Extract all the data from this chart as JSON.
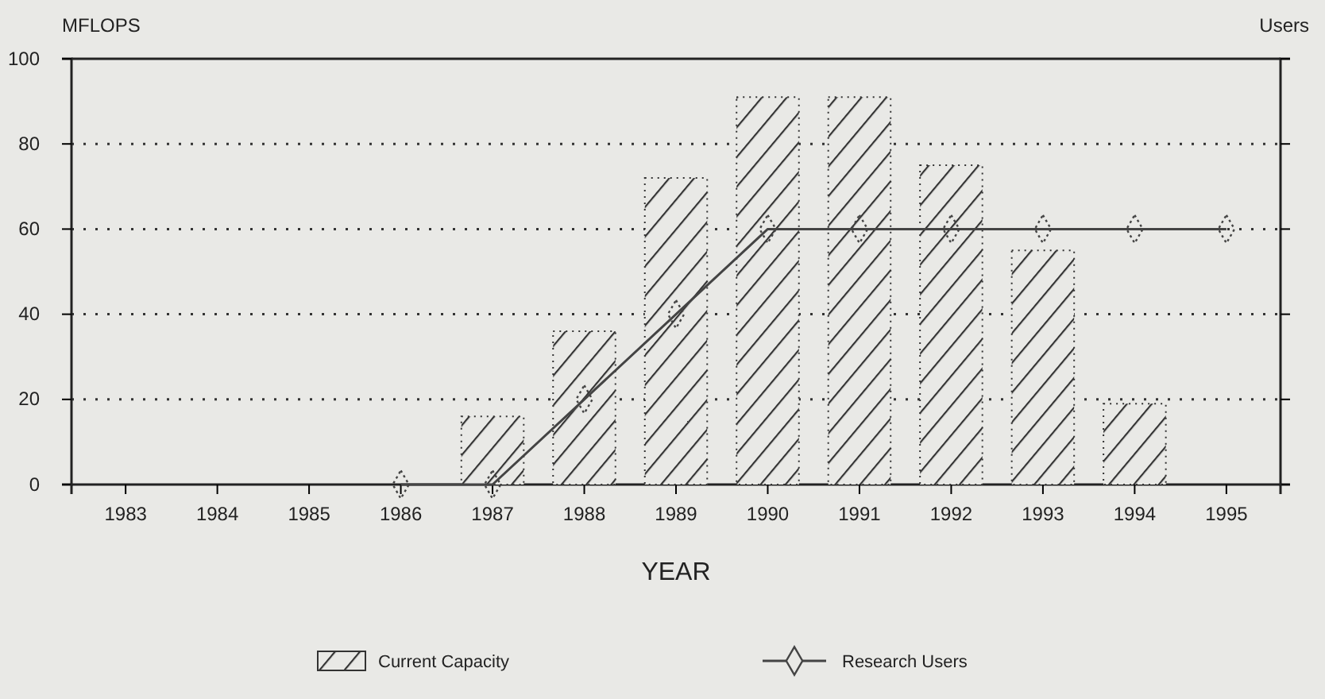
{
  "chart_data": {
    "type": "bar",
    "xlabel": "YEAR",
    "ylabel": "MFLOPS",
    "y2label": "Users",
    "categories": [
      "1983",
      "1984",
      "1985",
      "1986",
      "1987",
      "1988",
      "1989",
      "1990",
      "1991",
      "1992",
      "1993",
      "1994",
      "1995"
    ],
    "series": [
      {
        "name": "Current Capacity",
        "color": "#333333",
        "values": [
          null,
          null,
          null,
          null,
          16,
          36,
          72,
          91,
          91,
          75,
          55,
          19,
          null
        ]
      },
      {
        "name": "Research Users",
        "type": "line",
        "color": "#444444",
        "marker": "diamond",
        "values": [
          null,
          null,
          null,
          0,
          0,
          20,
          40,
          60,
          60,
          60,
          60,
          60,
          60
        ]
      }
    ],
    "ylim": [
      0,
      100
    ],
    "yticks": [
      0,
      20,
      40,
      60,
      80,
      100
    ],
    "grid": "y",
    "legend": "bottom"
  }
}
